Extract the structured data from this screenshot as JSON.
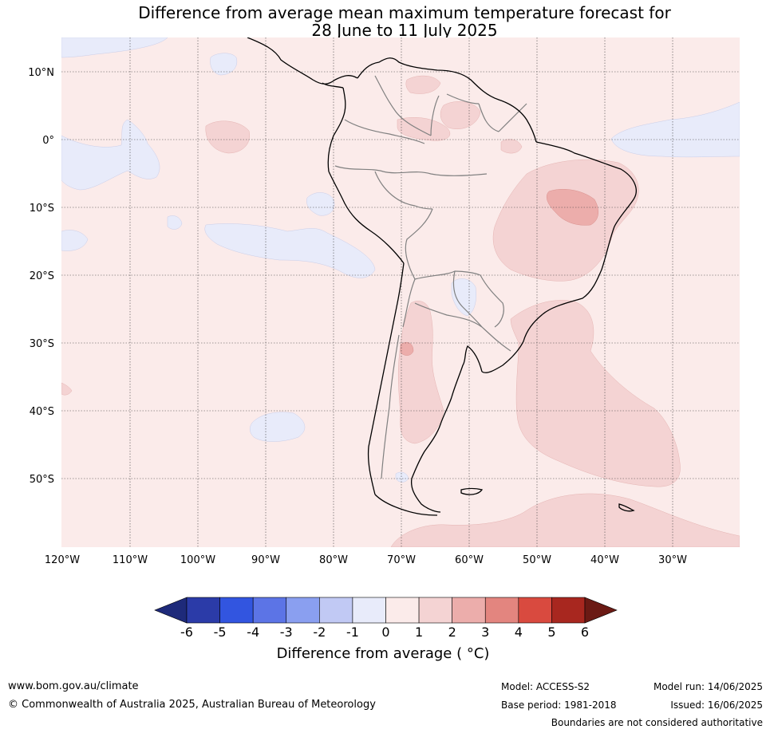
{
  "title_line1": "Difference from average mean maximum temperature forecast for",
  "title_line2": "28 June to 11 July 2025",
  "latitude_labels": [
    "10°N",
    "0°",
    "10°S",
    "20°S",
    "30°S",
    "40°S",
    "50°S"
  ],
  "longitude_labels": [
    "120°W",
    "110°W",
    "100°W",
    "90°W",
    "80°W",
    "70°W",
    "60°W",
    "50°W",
    "40°W",
    "30°W"
  ],
  "colorbar": {
    "ticks": [
      "-6",
      "-5",
      "-4",
      "-3",
      "-2",
      "-1",
      "0",
      "1",
      "2",
      "3",
      "4",
      "5",
      "6"
    ],
    "colors": [
      "#2b3ba8",
      "#3255e0",
      "#5c74e6",
      "#8a9ff0",
      "#c1c9f4",
      "#e8ebfa",
      "#fbebea",
      "#f4d3d3",
      "#ecadab",
      "#e3857f",
      "#d94a3f",
      "#a8271f"
    ],
    "extend_low_color": "#1e2a7a",
    "extend_high_color": "#6b1a14",
    "label": "Difference from average ( °C)"
  },
  "footer": {
    "url": "www.bom.gov.au/climate",
    "copyright": "© Commonwealth of Australia 2025, Australian Bureau of Meteorology",
    "model": "Model: ACCESS-S2",
    "base_period": "Base period: 1981-2018",
    "model_run": "Model run: 14/06/2025",
    "issued": "Issued: 16/06/2025",
    "disclaimer": "Boundaries are not considered authoritative"
  }
}
